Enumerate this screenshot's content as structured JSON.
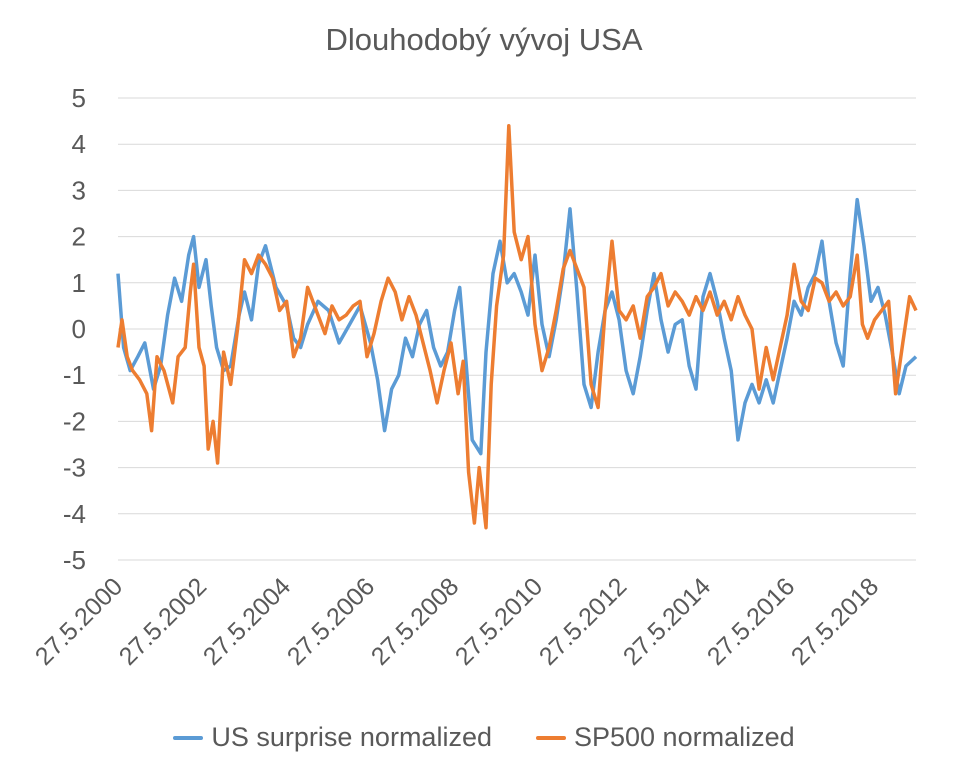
{
  "chart_data": {
    "type": "line",
    "title": "Dlouhodobý vývoj USA",
    "xlabel": "",
    "ylabel": "",
    "ylim": [
      -5,
      5
    ],
    "y_ticks": [
      5,
      4,
      3,
      2,
      1,
      0,
      -1,
      -2,
      -3,
      -4,
      -5
    ],
    "x_ticks": [
      "27.5.2000",
      "27.5.2002",
      "27.5.2004",
      "27.5.2006",
      "27.5.2008",
      "27.5.2010",
      "27.5.2012",
      "27.5.2014",
      "27.5.2016",
      "27.5.2018"
    ],
    "x_range": [
      "2000-05-27",
      "2019-05-27"
    ],
    "grid": true,
    "legend_position": "bottom",
    "series": [
      {
        "name": "US surprise normalized",
        "color": "#5B9BD5",
        "points": [
          [
            "2000-05-27",
            1.2
          ],
          [
            "2000-07-15",
            -0.4
          ],
          [
            "2000-09-10",
            -0.9
          ],
          [
            "2000-11-15",
            -0.6
          ],
          [
            "2001-01-15",
            -0.3
          ],
          [
            "2001-04-01",
            -1.3
          ],
          [
            "2001-06-01",
            -0.8
          ],
          [
            "2001-08-01",
            0.3
          ],
          [
            "2001-10-01",
            1.1
          ],
          [
            "2001-12-01",
            0.6
          ],
          [
            "2002-02-01",
            1.6
          ],
          [
            "2002-03-15",
            2.0
          ],
          [
            "2002-05-01",
            0.9
          ],
          [
            "2002-07-01",
            1.5
          ],
          [
            "2002-08-15",
            0.5
          ],
          [
            "2002-10-01",
            -0.4
          ],
          [
            "2002-12-01",
            -0.9
          ],
          [
            "2003-02-01",
            -0.8
          ],
          [
            "2003-04-15",
            0.3
          ],
          [
            "2003-06-01",
            0.8
          ],
          [
            "2003-08-01",
            0.2
          ],
          [
            "2003-10-01",
            1.4
          ],
          [
            "2003-12-01",
            1.8
          ],
          [
            "2004-03-01",
            0.9
          ],
          [
            "2004-06-01",
            0.5
          ],
          [
            "2004-08-01",
            -0.2
          ],
          [
            "2004-10-01",
            -0.4
          ],
          [
            "2004-12-01",
            0.1
          ],
          [
            "2005-03-01",
            0.6
          ],
          [
            "2005-06-01",
            0.4
          ],
          [
            "2005-09-01",
            -0.3
          ],
          [
            "2005-12-01",
            0.1
          ],
          [
            "2006-03-01",
            0.5
          ],
          [
            "2006-06-01",
            -0.3
          ],
          [
            "2006-08-01",
            -1.1
          ],
          [
            "2006-10-01",
            -2.2
          ],
          [
            "2006-12-01",
            -1.3
          ],
          [
            "2007-02-01",
            -1.0
          ],
          [
            "2007-04-01",
            -0.2
          ],
          [
            "2007-06-01",
            -0.6
          ],
          [
            "2007-08-01",
            0.1
          ],
          [
            "2007-10-01",
            0.4
          ],
          [
            "2007-12-01",
            -0.4
          ],
          [
            "2008-02-01",
            -0.8
          ],
          [
            "2008-04-01",
            -0.5
          ],
          [
            "2008-06-01",
            0.4
          ],
          [
            "2008-07-15",
            0.9
          ],
          [
            "2008-09-01",
            -0.5
          ],
          [
            "2008-11-01",
            -2.4
          ],
          [
            "2009-01-15",
            -2.7
          ],
          [
            "2009-03-01",
            -0.5
          ],
          [
            "2009-05-01",
            1.2
          ],
          [
            "2009-07-01",
            1.9
          ],
          [
            "2009-09-01",
            1.0
          ],
          [
            "2009-11-01",
            1.2
          ],
          [
            "2010-01-01",
            0.8
          ],
          [
            "2010-03-01",
            0.3
          ],
          [
            "2010-05-01",
            1.6
          ],
          [
            "2010-07-01",
            0.1
          ],
          [
            "2010-09-01",
            -0.6
          ],
          [
            "2010-11-01",
            0.2
          ],
          [
            "2011-01-01",
            1.2
          ],
          [
            "2011-03-01",
            2.6
          ],
          [
            "2011-05-01",
            0.8
          ],
          [
            "2011-07-01",
            -1.2
          ],
          [
            "2011-09-01",
            -1.7
          ],
          [
            "2011-11-01",
            -0.5
          ],
          [
            "2012-01-01",
            0.4
          ],
          [
            "2012-03-01",
            0.8
          ],
          [
            "2012-05-01",
            0.2
          ],
          [
            "2012-07-01",
            -0.9
          ],
          [
            "2012-09-01",
            -1.4
          ],
          [
            "2012-11-01",
            -0.6
          ],
          [
            "2013-01-01",
            0.4
          ],
          [
            "2013-03-01",
            1.2
          ],
          [
            "2013-05-01",
            0.2
          ],
          [
            "2013-07-01",
            -0.5
          ],
          [
            "2013-09-01",
            0.1
          ],
          [
            "2013-11-01",
            0.2
          ],
          [
            "2014-01-01",
            -0.8
          ],
          [
            "2014-03-01",
            -1.3
          ],
          [
            "2014-05-01",
            0.7
          ],
          [
            "2014-07-01",
            1.2
          ],
          [
            "2014-09-01",
            0.6
          ],
          [
            "2014-11-01",
            -0.2
          ],
          [
            "2015-01-01",
            -0.9
          ],
          [
            "2015-03-01",
            -2.4
          ],
          [
            "2015-05-01",
            -1.6
          ],
          [
            "2015-07-01",
            -1.2
          ],
          [
            "2015-09-01",
            -1.6
          ],
          [
            "2015-11-01",
            -1.1
          ],
          [
            "2016-01-01",
            -1.6
          ],
          [
            "2016-03-01",
            -0.9
          ],
          [
            "2016-05-01",
            -0.2
          ],
          [
            "2016-07-01",
            0.6
          ],
          [
            "2016-09-01",
            0.3
          ],
          [
            "2016-11-01",
            0.9
          ],
          [
            "2017-01-01",
            1.2
          ],
          [
            "2017-03-01",
            1.9
          ],
          [
            "2017-05-01",
            0.6
          ],
          [
            "2017-07-01",
            -0.3
          ],
          [
            "2017-09-01",
            -0.8
          ],
          [
            "2017-11-01",
            1.2
          ],
          [
            "2018-01-01",
            2.8
          ],
          [
            "2018-03-01",
            1.8
          ],
          [
            "2018-05-01",
            0.6
          ],
          [
            "2018-07-01",
            0.9
          ],
          [
            "2018-09-01",
            0.3
          ],
          [
            "2018-11-01",
            -0.5
          ],
          [
            "2019-01-01",
            -1.4
          ],
          [
            "2019-03-01",
            -0.8
          ],
          [
            "2019-05-27",
            -0.6
          ]
        ]
      },
      {
        "name": "SP500 normalized",
        "color": "#ED7D31",
        "points": [
          [
            "2000-05-27",
            -0.4
          ],
          [
            "2000-07-01",
            0.2
          ],
          [
            "2000-08-15",
            -0.6
          ],
          [
            "2000-10-01",
            -0.9
          ],
          [
            "2000-12-01",
            -1.1
          ],
          [
            "2001-02-01",
            -1.4
          ],
          [
            "2001-03-15",
            -2.2
          ],
          [
            "2001-05-01",
            -0.6
          ],
          [
            "2001-07-01",
            -0.9
          ],
          [
            "2001-09-15",
            -1.6
          ],
          [
            "2001-11-01",
            -0.6
          ],
          [
            "2002-01-01",
            -0.4
          ],
          [
            "2002-02-15",
            0.8
          ],
          [
            "2002-03-15",
            1.4
          ],
          [
            "2002-05-01",
            -0.4
          ],
          [
            "2002-06-15",
            -0.8
          ],
          [
            "2002-07-20",
            -2.6
          ],
          [
            "2002-09-01",
            -2.0
          ],
          [
            "2002-10-10",
            -2.9
          ],
          [
            "2002-12-01",
            -0.5
          ],
          [
            "2003-02-01",
            -1.2
          ],
          [
            "2003-04-01",
            0.0
          ],
          [
            "2003-06-01",
            1.5
          ],
          [
            "2003-08-01",
            1.2
          ],
          [
            "2003-10-01",
            1.6
          ],
          [
            "2003-12-01",
            1.4
          ],
          [
            "2004-02-01",
            1.1
          ],
          [
            "2004-04-01",
            0.4
          ],
          [
            "2004-06-01",
            0.6
          ],
          [
            "2004-08-01",
            -0.6
          ],
          [
            "2004-10-01",
            -0.2
          ],
          [
            "2004-12-01",
            0.9
          ],
          [
            "2005-03-01",
            0.3
          ],
          [
            "2005-05-01",
            -0.1
          ],
          [
            "2005-07-01",
            0.5
          ],
          [
            "2005-09-01",
            0.2
          ],
          [
            "2005-11-01",
            0.3
          ],
          [
            "2006-01-01",
            0.5
          ],
          [
            "2006-03-01",
            0.6
          ],
          [
            "2006-05-01",
            -0.6
          ],
          [
            "2006-07-01",
            -0.1
          ],
          [
            "2006-09-01",
            0.6
          ],
          [
            "2006-11-01",
            1.1
          ],
          [
            "2007-01-01",
            0.8
          ],
          [
            "2007-03-01",
            0.2
          ],
          [
            "2007-05-01",
            0.7
          ],
          [
            "2007-07-01",
            0.3
          ],
          [
            "2007-09-01",
            -0.3
          ],
          [
            "2007-11-01",
            -0.9
          ],
          [
            "2008-01-01",
            -1.6
          ],
          [
            "2008-03-01",
            -0.9
          ],
          [
            "2008-05-01",
            -0.3
          ],
          [
            "2008-07-01",
            -1.4
          ],
          [
            "2008-08-15",
            -0.7
          ],
          [
            "2008-10-01",
            -3.1
          ],
          [
            "2008-11-20",
            -4.2
          ],
          [
            "2009-01-01",
            -3.0
          ],
          [
            "2009-03-01",
            -4.3
          ],
          [
            "2009-04-15",
            -1.2
          ],
          [
            "2009-06-01",
            0.5
          ],
          [
            "2009-08-01",
            1.6
          ],
          [
            "2009-09-15",
            4.4
          ],
          [
            "2009-11-01",
            2.1
          ],
          [
            "2010-01-01",
            1.5
          ],
          [
            "2010-03-01",
            2.0
          ],
          [
            "2010-05-01",
            0.1
          ],
          [
            "2010-07-01",
            -0.9
          ],
          [
            "2010-09-01",
            -0.4
          ],
          [
            "2010-11-01",
            0.4
          ],
          [
            "2011-01-01",
            1.3
          ],
          [
            "2011-03-01",
            1.7
          ],
          [
            "2011-05-01",
            1.3
          ],
          [
            "2011-07-01",
            0.9
          ],
          [
            "2011-09-01",
            -1.2
          ],
          [
            "2011-11-01",
            -1.7
          ],
          [
            "2012-01-01",
            0.4
          ],
          [
            "2012-03-01",
            1.9
          ],
          [
            "2012-05-01",
            0.4
          ],
          [
            "2012-07-01",
            0.2
          ],
          [
            "2012-09-01",
            0.5
          ],
          [
            "2012-11-01",
            -0.2
          ],
          [
            "2013-01-01",
            0.7
          ],
          [
            "2013-03-01",
            0.9
          ],
          [
            "2013-05-01",
            1.2
          ],
          [
            "2013-07-01",
            0.5
          ],
          [
            "2013-09-01",
            0.8
          ],
          [
            "2013-11-01",
            0.6
          ],
          [
            "2014-01-01",
            0.3
          ],
          [
            "2014-03-01",
            0.7
          ],
          [
            "2014-05-01",
            0.4
          ],
          [
            "2014-07-01",
            0.8
          ],
          [
            "2014-09-01",
            0.3
          ],
          [
            "2014-11-01",
            0.6
          ],
          [
            "2015-01-01",
            0.2
          ],
          [
            "2015-03-01",
            0.7
          ],
          [
            "2015-05-01",
            0.3
          ],
          [
            "2015-07-01",
            0.0
          ],
          [
            "2015-09-01",
            -1.3
          ],
          [
            "2015-11-01",
            -0.4
          ],
          [
            "2016-01-01",
            -1.1
          ],
          [
            "2016-03-01",
            -0.4
          ],
          [
            "2016-05-01",
            0.3
          ],
          [
            "2016-07-01",
            1.4
          ],
          [
            "2016-09-01",
            0.6
          ],
          [
            "2016-11-01",
            0.4
          ],
          [
            "2017-01-01",
            1.1
          ],
          [
            "2017-03-01",
            1.0
          ],
          [
            "2017-05-01",
            0.6
          ],
          [
            "2017-07-01",
            0.8
          ],
          [
            "2017-09-01",
            0.5
          ],
          [
            "2017-11-01",
            0.7
          ],
          [
            "2018-01-01",
            1.6
          ],
          [
            "2018-02-15",
            0.1
          ],
          [
            "2018-04-01",
            -0.2
          ],
          [
            "2018-06-01",
            0.2
          ],
          [
            "2018-08-01",
            0.4
          ],
          [
            "2018-10-01",
            0.6
          ],
          [
            "2018-12-01",
            -1.4
          ],
          [
            "2019-02-01",
            -0.3
          ],
          [
            "2019-04-01",
            0.7
          ],
          [
            "2019-05-27",
            0.4
          ]
        ]
      }
    ]
  }
}
